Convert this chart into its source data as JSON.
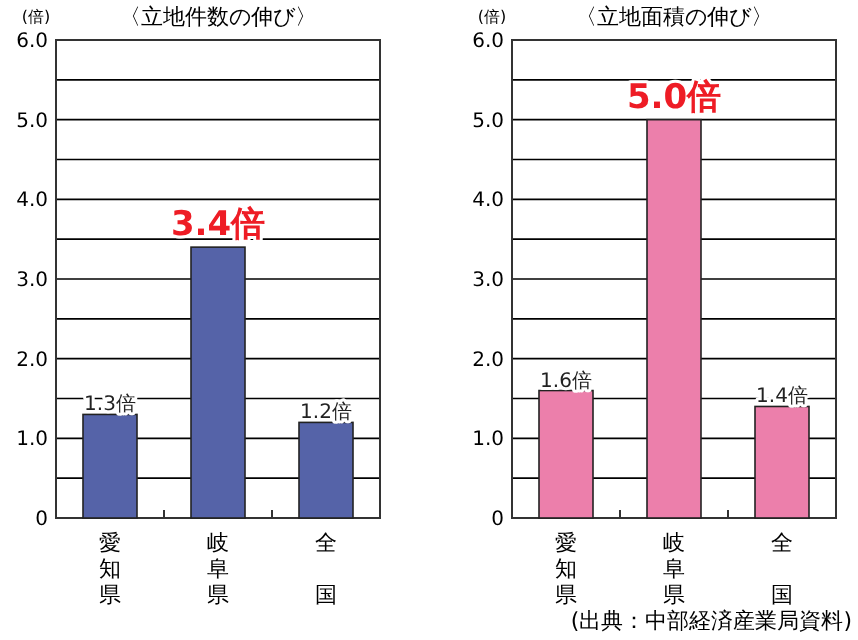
{
  "chart_data": [
    {
      "type": "bar",
      "title": "〈立地件数の伸び〉",
      "ylabel": "(倍)",
      "categories": [
        "愛知県",
        "岐阜県",
        "全国"
      ],
      "values": [
        1.3,
        3.4,
        1.2
      ],
      "value_labels": [
        "1.3倍",
        "3.4倍",
        "1.2倍"
      ],
      "color": "#5563a8",
      "ylim": [
        0,
        6
      ],
      "yticks": [
        0,
        {
          "value": 0.5,
          "label": null
        },
        {
          "value": 1,
          "label": "1.0"
        },
        {
          "value": 1.5,
          "label": null
        },
        {
          "value": 2,
          "label": "2.0"
        },
        {
          "value": 2.5,
          "label": null
        },
        {
          "value": 3,
          "label": "3.0"
        },
        {
          "value": 3.5,
          "label": null
        },
        {
          "value": 4,
          "label": "4.0"
        },
        {
          "value": 4.5,
          "label": null
        },
        {
          "value": 5,
          "label": "5.0"
        },
        {
          "value": 5.5,
          "label": null
        },
        {
          "value": 6,
          "label": "6.0"
        }
      ],
      "grid": "y"
    },
    {
      "type": "bar",
      "title": "〈立地面積の伸び〉",
      "ylabel": "(倍)",
      "categories": [
        "愛知県",
        "岐阜県",
        "全国"
      ],
      "values": [
        1.6,
        5.0,
        1.4
      ],
      "value_labels": [
        "1.6倍",
        "5.0倍",
        "1.4倍"
      ],
      "color": "#ec7fab",
      "ylim": [
        0,
        6
      ],
      "yticks": [
        0,
        {
          "value": 0.5,
          "label": null
        },
        {
          "value": 1,
          "label": "1.0"
        },
        {
          "value": 1.5,
          "label": null
        },
        {
          "value": 2,
          "label": "2.0"
        },
        {
          "value": 2.5,
          "label": null
        },
        {
          "value": 3,
          "label": "3.0"
        },
        {
          "value": 3.5,
          "label": null
        },
        {
          "value": 4,
          "label": "4.0"
        },
        {
          "value": 4.5,
          "label": null
        },
        {
          "value": 5,
          "label": "5.0"
        },
        {
          "value": 5.5,
          "label": null
        },
        {
          "value": 6,
          "label": "6.0"
        }
      ],
      "grid": "y",
      "annotations": [
        "(出典：中部経済産業局資料)"
      ]
    }
  ]
}
